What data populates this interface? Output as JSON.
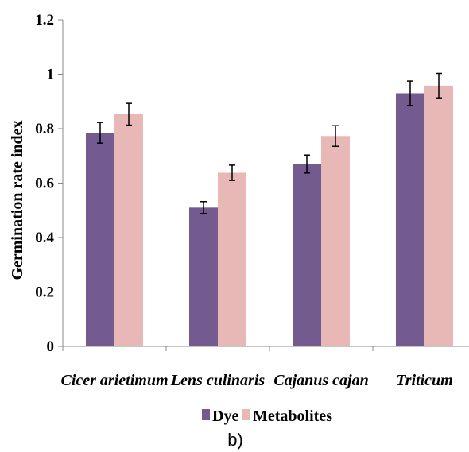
{
  "chart_data": {
    "type": "bar",
    "title": "",
    "xlabel": "",
    "ylabel": "Germination rate index",
    "ylim": [
      0,
      1.2
    ],
    "yticks": [
      "0",
      "0.2",
      "0.4",
      "0.6",
      "0.8",
      "1",
      "1.2"
    ],
    "categories": [
      "Cicer arietimum",
      "Lens culinaris",
      "Cajanus cajan",
      "Triticum"
    ],
    "series": [
      {
        "name": "Dye",
        "color": "#735b8f",
        "values": [
          0.785,
          0.51,
          0.67,
          0.93
        ],
        "errors": [
          0.038,
          0.022,
          0.033,
          0.045
        ]
      },
      {
        "name": "Metabolites",
        "color": "#e8b8b6",
        "values": [
          0.853,
          0.638,
          0.773,
          0.958
        ],
        "errors": [
          0.04,
          0.028,
          0.038,
          0.045
        ]
      }
    ],
    "grid": false,
    "legend_position": "bottom"
  },
  "caption": "b)"
}
